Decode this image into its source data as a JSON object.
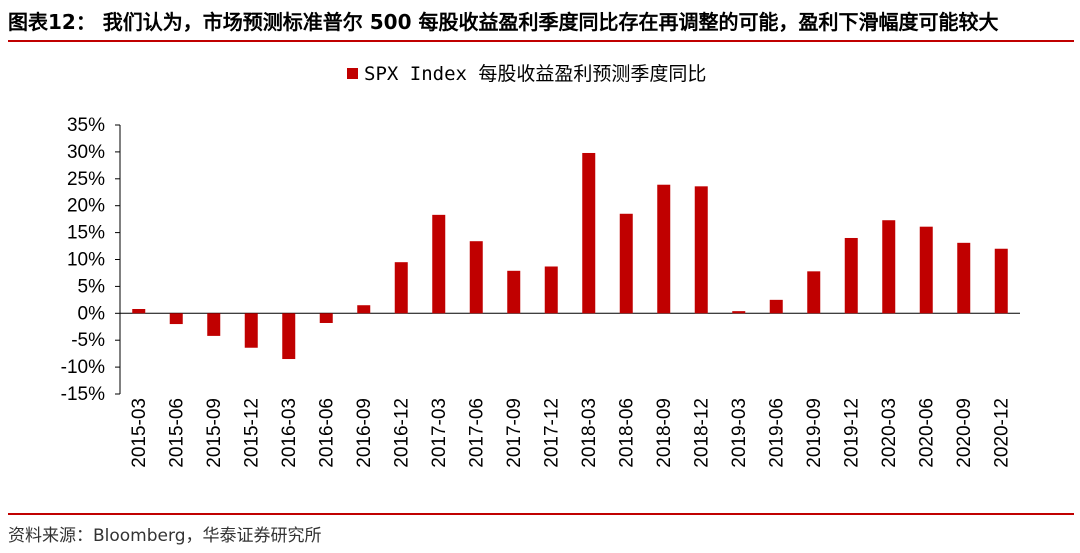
{
  "figure": {
    "title": "图表12： 我们认为，市场预测标准普尔 500 每股收益盈利季度同比存在再调整的可能，盈利下滑幅度可能较大",
    "source": "资料来源：Bloomberg，华泰证券研究所"
  },
  "colors": {
    "bar": "#c00000",
    "rule": "#c00000",
    "axis": "#000000"
  },
  "chart_data": {
    "type": "bar",
    "categories": [
      "2015-03",
      "2015-06",
      "2015-09",
      "2015-12",
      "2016-03",
      "2016-06",
      "2016-09",
      "2016-12",
      "2017-03",
      "2017-06",
      "2017-09",
      "2017-12",
      "2018-03",
      "2018-06",
      "2018-09",
      "2018-12",
      "2019-03",
      "2019-06",
      "2019-09",
      "2019-12",
      "2020-03",
      "2020-06",
      "2020-09",
      "2020-12"
    ],
    "series": [
      {
        "name": "SPX Index 每股收益盈利预测季度同比",
        "values": [
          0.8,
          -2.0,
          -4.2,
          -6.4,
          -8.5,
          -1.8,
          1.5,
          9.5,
          18.3,
          13.4,
          7.9,
          8.7,
          29.8,
          18.5,
          23.9,
          23.6,
          0.4,
          2.5,
          7.8,
          14.0,
          17.3,
          16.1,
          13.1,
          12.0
        ]
      }
    ],
    "y_ticks": [
      "35%",
      "30%",
      "25%",
      "20%",
      "15%",
      "10%",
      "5%",
      "0%",
      "-5%",
      "-10%",
      "-15%"
    ],
    "ylim": [
      -15,
      35
    ],
    "xlabel": "",
    "ylabel": "",
    "legend_position": "top-center",
    "grid": false
  }
}
